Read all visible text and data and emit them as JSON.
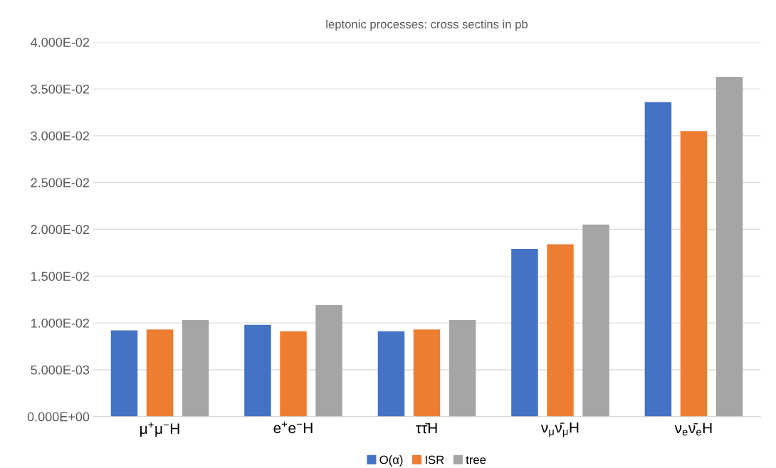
{
  "chart_data": {
    "type": "bar",
    "title": "leptonic processes: cross sectins in pb",
    "categories": [
      "μ$^{+}$μ$^{−}$H",
      "e$^{+}$e$^{−}$H",
      "ττ̄H",
      "ν$_{μ}$ν̄$_{μ}$H",
      "ν$_{e}$ν̄$_{e}$H"
    ],
    "series": [
      {
        "name": "O(α)",
        "color": "#4472c4",
        "values": [
          0.0092,
          0.0098,
          0.0091,
          0.0179,
          0.0336
        ]
      },
      {
        "name": "ISR",
        "color": "#ed7d31",
        "values": [
          0.0093,
          0.0091,
          0.0093,
          0.0184,
          0.0305
        ]
      },
      {
        "name": "tree",
        "color": "#a5a5a5",
        "values": [
          0.0103,
          0.0119,
          0.0103,
          0.0205,
          0.0363
        ]
      }
    ],
    "ylim": [
      0,
      0.04
    ],
    "yticks": [
      {
        "value": 0,
        "label": "0.000E+00"
      },
      {
        "value": 0.005,
        "label": "5.000E-03"
      },
      {
        "value": 0.01,
        "label": "1.000E-02"
      },
      {
        "value": 0.015,
        "label": "1.500E-02"
      },
      {
        "value": 0.02,
        "label": "2.000E-02"
      },
      {
        "value": 0.025,
        "label": "2.500E-02"
      },
      {
        "value": 0.03,
        "label": "3.000E-02"
      },
      {
        "value": 0.035,
        "label": "3.500E-02"
      },
      {
        "value": 0.04,
        "label": "4.000E-02"
      }
    ],
    "grid": "y",
    "legend": "bottom"
  }
}
